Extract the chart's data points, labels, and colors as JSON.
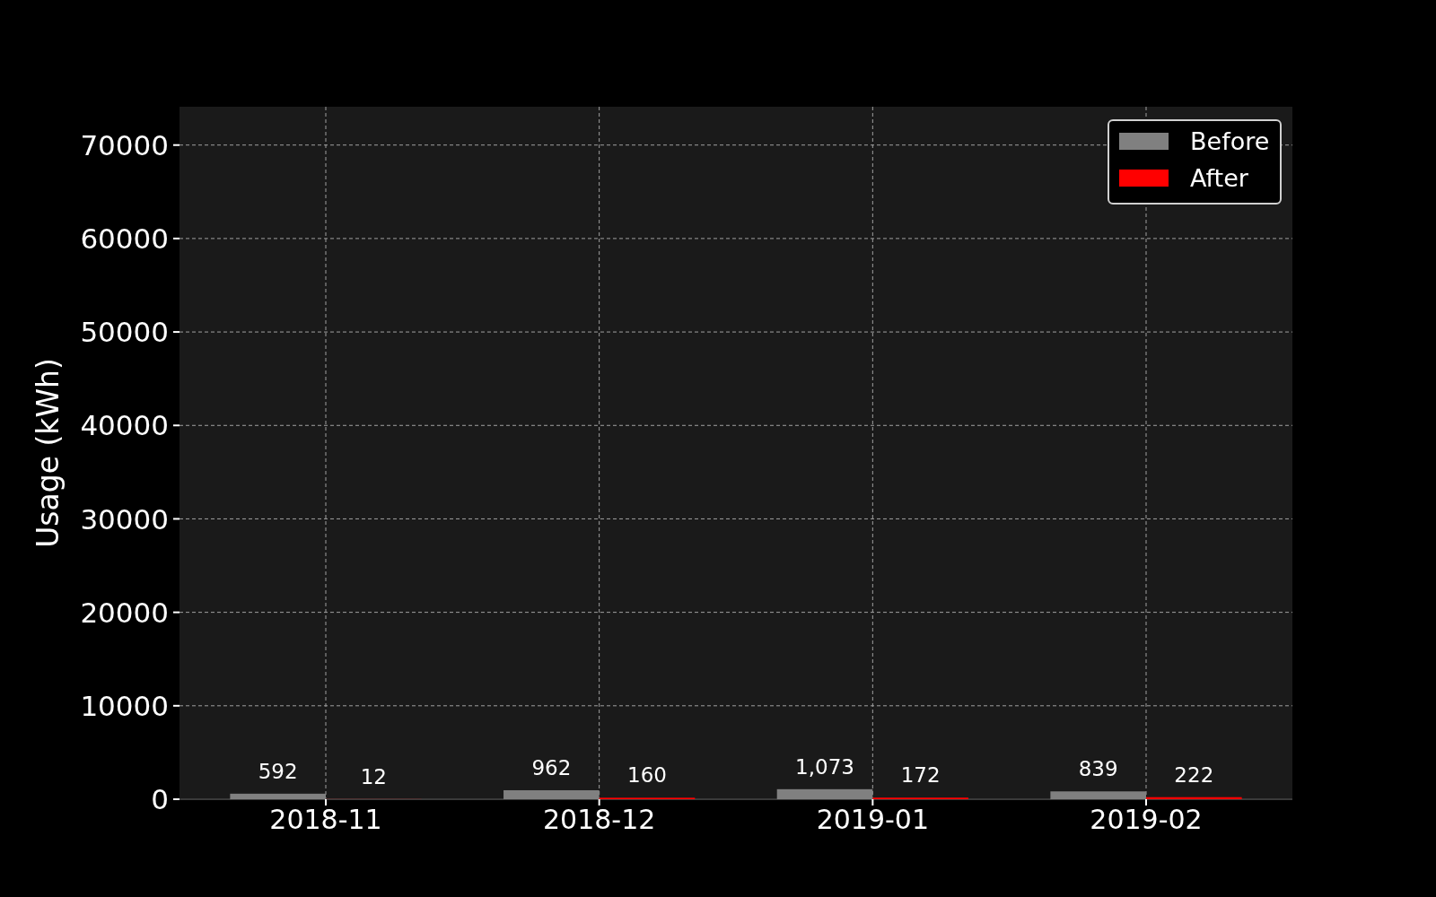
{
  "chart_data": {
    "type": "bar",
    "ylabel": "Usage (kWh)",
    "categories": [
      "2018-11",
      "2018-12",
      "2019-01",
      "2019-02"
    ],
    "series": [
      {
        "name": "Before",
        "color": "#808080",
        "values": [
          592,
          962,
          1073,
          839
        ],
        "value_labels": [
          "592",
          "962",
          "1,073",
          "839"
        ]
      },
      {
        "name": "After",
        "color": "#ff0000",
        "values": [
          12,
          160,
          172,
          222
        ],
        "value_labels": [
          "12",
          "160",
          "172",
          "222"
        ]
      }
    ],
    "ylim": [
      0,
      74100
    ],
    "yticks": [
      0,
      10000,
      20000,
      30000,
      40000,
      50000,
      60000,
      70000
    ],
    "grid": true,
    "legend": "top right"
  }
}
